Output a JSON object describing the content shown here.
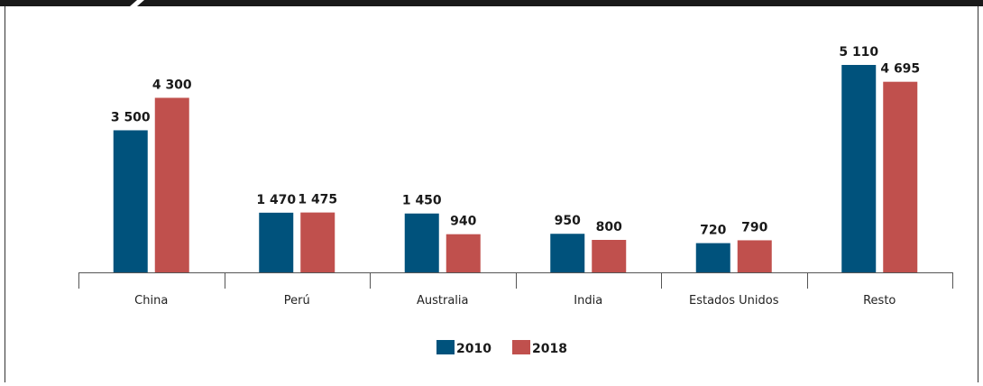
{
  "chart_data": {
    "type": "bar",
    "categories": [
      "China",
      "Perú",
      "Australia",
      "India",
      "Estados Unidos",
      "Resto"
    ],
    "series": [
      {
        "name": "2010",
        "color": "#00527c",
        "values": [
          3500,
          1470,
          1450,
          950,
          720,
          5110
        ],
        "labels": [
          "3 500",
          "1 470",
          "1 450",
          "950",
          "720",
          "5 110"
        ]
      },
      {
        "name": "2018",
        "color": "#c0504d",
        "values": [
          4300,
          1475,
          940,
          800,
          790,
          4695
        ],
        "labels": [
          "4 300",
          "1 475",
          "940",
          "800",
          "790",
          "4 695"
        ]
      }
    ],
    "title": "",
    "xlabel": "",
    "ylabel": "",
    "ylim": [
      0,
      5110
    ],
    "grid": false,
    "legend": "bottom-center",
    "show_value_labels": true
  }
}
